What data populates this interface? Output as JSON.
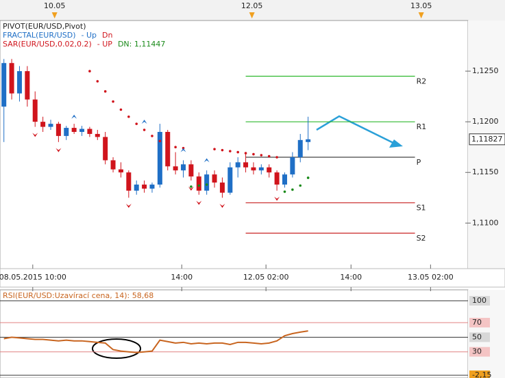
{
  "chart_data": {
    "type": "candlestick",
    "legend": [
      {
        "text": "PIVOT(EUR/USD,Pivot)",
        "color": "#222222"
      },
      {
        "text": "FRACTAL(EUR/USD)",
        "color": "#1f6fc6",
        "parts": [
          {
            "text": "- Up",
            "color": "#1f6fc6"
          },
          {
            "text": "Dn",
            "color": "#d0141c"
          }
        ]
      },
      {
        "text": "SAR(EUR/USD,0.02,0.2)",
        "color": "#d0141c",
        "parts": [
          {
            "text": "- UP",
            "color": "#d0141c"
          },
          {
            "text": "DN: 1,11447",
            "color": "#1a8a1a"
          }
        ]
      }
    ],
    "day_markers": [
      {
        "value": 6.5,
        "label": "10.05"
      },
      {
        "value": 31.8,
        "label": "12.05"
      },
      {
        "value": 53.5,
        "label": "13.05"
      }
    ],
    "xlim": [
      -0.5,
      59.5
    ],
    "xticks": [
      {
        "value": 3.7,
        "label": "08.05.2015 10:00"
      },
      {
        "value": 22.8,
        "label": "14:00"
      },
      {
        "value": 33.6,
        "label": "12.05 02:00"
      },
      {
        "value": 44.5,
        "label": "14:00"
      },
      {
        "value": 54.7,
        "label": "13.05 02:00"
      }
    ],
    "ylim": [
      1.1055,
      1.13
    ],
    "yticks": [
      {
        "value": 1.125,
        "label": "1,1250"
      },
      {
        "value": 1.12,
        "label": "1,1200"
      },
      {
        "value": 1.115,
        "label": "1,1150"
      },
      {
        "value": 1.11,
        "label": "1,1100"
      }
    ],
    "up_color": "#1f6fc6",
    "down_color": "#d0141c",
    "ohlc": [
      [
        1.1215,
        1.1262,
        1.118,
        1.1258
      ],
      [
        1.1258,
        1.1262,
        1.1222,
        1.1228
      ],
      [
        1.1228,
        1.1255,
        1.122,
        1.125
      ],
      [
        1.125,
        1.1255,
        1.1215,
        1.1222
      ],
      [
        1.1222,
        1.123,
        1.1195,
        1.12
      ],
      [
        1.12,
        1.1205,
        1.119,
        1.1195
      ],
      [
        1.1195,
        1.1202,
        1.1192,
        1.1198
      ],
      [
        1.1198,
        1.12,
        1.118,
        1.1186
      ],
      [
        1.1186,
        1.1196,
        1.1182,
        1.1194
      ],
      [
        1.1194,
        1.1198,
        1.1188,
        1.119
      ],
      [
        1.119,
        1.1196,
        1.1186,
        1.1193
      ],
      [
        1.1193,
        1.1195,
        1.1185,
        1.1188
      ],
      [
        1.1188,
        1.1192,
        1.1182,
        1.1185
      ],
      [
        1.1185,
        1.119,
        1.1158,
        1.1162
      ],
      [
        1.1162,
        1.1165,
        1.115,
        1.1153
      ],
      [
        1.1153,
        1.116,
        1.1145,
        1.115
      ],
      [
        1.115,
        1.1152,
        1.1125,
        1.1132
      ],
      [
        1.1132,
        1.1142,
        1.1128,
        1.1138
      ],
      [
        1.1138,
        1.1142,
        1.113,
        1.1134
      ],
      [
        1.1134,
        1.114,
        1.113,
        1.1138
      ],
      [
        1.1138,
        1.1198,
        1.1135,
        1.119
      ],
      [
        1.119,
        1.1192,
        1.1152,
        1.1156
      ],
      [
        1.1156,
        1.117,
        1.1148,
        1.1152
      ],
      [
        1.1152,
        1.1162,
        1.1145,
        1.1158
      ],
      [
        1.1158,
        1.1162,
        1.1142,
        1.1146
      ],
      [
        1.1146,
        1.115,
        1.1128,
        1.1132
      ],
      [
        1.1132,
        1.1152,
        1.1128,
        1.1148
      ],
      [
        1.1148,
        1.1152,
        1.1135,
        1.114
      ],
      [
        1.114,
        1.1145,
        1.1125,
        1.113
      ],
      [
        1.113,
        1.116,
        1.1128,
        1.1155
      ],
      [
        1.1155,
        1.1165,
        1.1145,
        1.116
      ],
      [
        1.116,
        1.1168,
        1.115,
        1.1155
      ],
      [
        1.1155,
        1.116,
        1.1148,
        1.1152
      ],
      [
        1.1152,
        1.1158,
        1.1148,
        1.1155
      ],
      [
        1.1155,
        1.1158,
        1.1145,
        1.115
      ],
      [
        1.115,
        1.1152,
        1.1132,
        1.1138
      ],
      [
        1.1138,
        1.115,
        1.1135,
        1.1148
      ],
      [
        1.1148,
        1.117,
        1.1145,
        1.1165
      ],
      [
        1.1165,
        1.1188,
        1.116,
        1.1182
      ],
      [
        1.118,
        1.1205,
        1.1172,
        1.11827
      ]
    ],
    "sar_dn": [
      null,
      null,
      null,
      null,
      null,
      null,
      null,
      null,
      null,
      null,
      null,
      1.125,
      1.124,
      1.123,
      1.122,
      1.1212,
      1.1205,
      1.1198,
      1.1192,
      1.1186,
      1.1181,
      1.1178,
      1.1175,
      1.1174,
      null,
      null,
      null,
      1.1173,
      1.1172,
      1.1171,
      1.117,
      1.1169,
      1.1168,
      1.1167,
      1.1166,
      1.1165,
      null,
      null,
      null,
      null
    ],
    "sar_up": [
      null,
      null,
      null,
      null,
      null,
      null,
      null,
      null,
      null,
      null,
      null,
      null,
      null,
      null,
      null,
      null,
      null,
      null,
      null,
      null,
      null,
      null,
      null,
      null,
      1.1136,
      1.1137,
      1.1138,
      null,
      null,
      null,
      null,
      null,
      null,
      null,
      null,
      null,
      1.1131,
      1.1133,
      1.1137,
      1.11447
    ],
    "sar_dn_color": "#d0141c",
    "sar_up_color": "#1a8a1a",
    "fractal_up": [
      null,
      null,
      null,
      null,
      null,
      null,
      null,
      null,
      null,
      1.1205,
      null,
      null,
      null,
      null,
      null,
      null,
      null,
      null,
      1.12,
      null,
      null,
      null,
      null,
      1.1172,
      null,
      null,
      1.1162,
      null,
      null,
      null,
      null,
      null,
      null,
      null,
      null,
      null,
      null,
      null,
      null,
      null
    ],
    "fractal_dn": [
      null,
      null,
      null,
      null,
      1.1187,
      null,
      null,
      1.1172,
      null,
      null,
      null,
      null,
      null,
      null,
      null,
      null,
      1.1117,
      null,
      null,
      null,
      null,
      null,
      null,
      null,
      1.1134,
      1.112,
      null,
      null,
      1.1117,
      null,
      null,
      null,
      null,
      null,
      null,
      1.1124,
      null,
      null,
      null,
      null
    ],
    "pivot_span": [
      31,
      52.7
    ],
    "pivots": [
      {
        "name": "R2",
        "value": 1.1245,
        "color": "#2db82d"
      },
      {
        "name": "R1",
        "value": 1.12,
        "color": "#2db82d"
      },
      {
        "name": "P",
        "value": 1.1165,
        "color": "#444444"
      },
      {
        "name": "S1",
        "value": 1.112,
        "color": "#c82020"
      },
      {
        "name": "S2",
        "value": 1.109,
        "color": "#c82020"
      }
    ],
    "last_price": {
      "value": 1.11827,
      "label": "1,11827"
    },
    "rsi": {
      "title": "RSI(EUR/USD:Uzavírací cena, 14): 58,68",
      "color": "#c8641e",
      "ylim": [
        -2.15,
        100
      ],
      "yticks": [
        100,
        70,
        50,
        30,
        {
          "value": -2.15,
          "label": "-2,15"
        }
      ],
      "levels": [
        70,
        30
      ],
      "level_color": "#e08080",
      "values": [
        48,
        50,
        49,
        48,
        47,
        47,
        46,
        45,
        46,
        45,
        45,
        44,
        43,
        42,
        33,
        31,
        30,
        29,
        30,
        31,
        46,
        44,
        42,
        43,
        41,
        42,
        41,
        42,
        42,
        40,
        43,
        43,
        42,
        41,
        42,
        45,
        52,
        55,
        57,
        58.68
      ]
    }
  }
}
